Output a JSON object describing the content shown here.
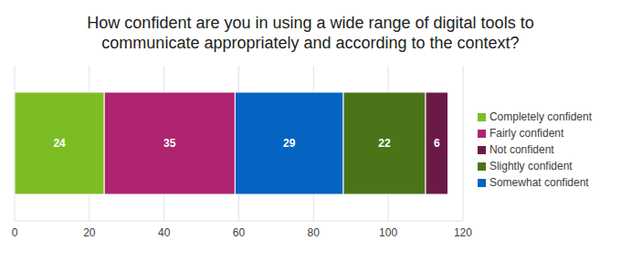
{
  "chart_data": {
    "type": "bar",
    "title": "How confident are you in using a wide range of digital tools to communicate appropriately and according to the context?",
    "orientation": "horizontal",
    "stacked": true,
    "categories": [
      null
    ],
    "series": [
      {
        "name": "Completely confident",
        "color": "#7dbd24",
        "values": [
          24
        ]
      },
      {
        "name": "Fairly confident",
        "color": "#ae2470",
        "values": [
          35
        ]
      },
      {
        "name": "Somewhat confident",
        "color": "#0563c1",
        "values": [
          29
        ]
      },
      {
        "name": "Slightly confident",
        "color": "#4b7419",
        "values": [
          22
        ]
      },
      {
        "name": "Not confident",
        "color": "#6b1a48",
        "values": [
          6
        ]
      }
    ],
    "xlim": [
      0,
      120
    ],
    "xticks": [
      0,
      20,
      40,
      60,
      80,
      100,
      120
    ],
    "grid": true,
    "legend": "right",
    "data_labels": true,
    "tick_labels": "x"
  }
}
